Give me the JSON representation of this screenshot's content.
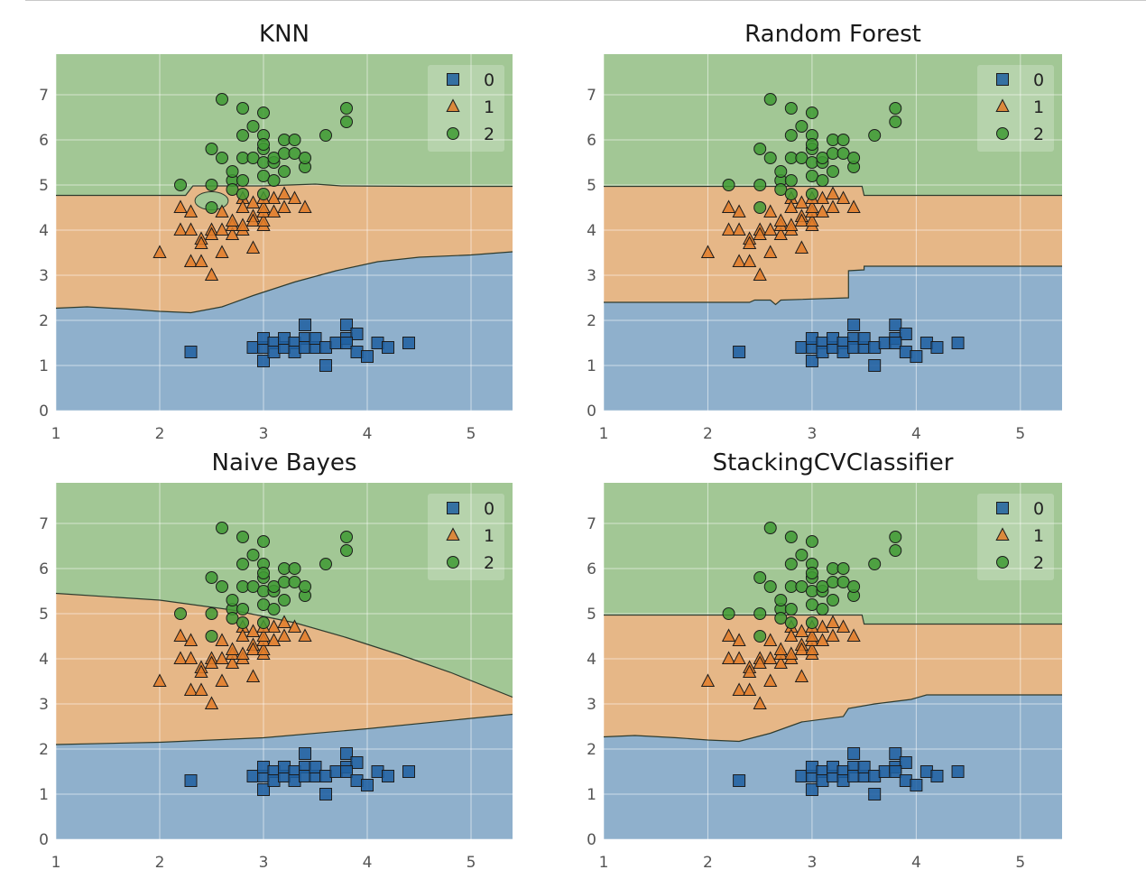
{
  "colors": {
    "class0": "#1f5fa0",
    "class1": "#e07b28",
    "class2": "#3f9a34",
    "region0": "#8fb0cc",
    "region1": "#e6b787",
    "region2": "#a2c795",
    "grid": "#ffffff",
    "boundary": "#2e3b2e",
    "tick_text": "#555555"
  },
  "chart_data": [
    {
      "type": "scatter",
      "title": "KNN",
      "xlim": [
        1,
        5.4
      ],
      "ylim": [
        0,
        7.9
      ],
      "xticks": [
        "1",
        "2",
        "3",
        "4",
        "5"
      ],
      "yticks": [
        "0",
        "1",
        "2",
        "3",
        "4",
        "5",
        "6",
        "7"
      ],
      "legend": {
        "position": "top-right",
        "entries": [
          "0",
          "1",
          "2"
        ],
        "markers": [
          "square",
          "triangle",
          "circle"
        ]
      },
      "boundaries": {
        "lower": [
          [
            1,
            2.27
          ],
          [
            1.3,
            2.3
          ],
          [
            1.7,
            2.25
          ],
          [
            2,
            2.2
          ],
          [
            2.3,
            2.17
          ],
          [
            2.6,
            2.3
          ],
          [
            2.9,
            2.55
          ],
          [
            3.3,
            2.85
          ],
          [
            3.7,
            3.1
          ],
          [
            4.1,
            3.3
          ],
          [
            4.5,
            3.4
          ],
          [
            5,
            3.45
          ],
          [
            5.4,
            3.52
          ]
        ],
        "upper": [
          [
            1,
            4.77
          ],
          [
            2.25,
            4.77
          ],
          [
            2.32,
            4.98
          ],
          [
            2.7,
            4.98
          ],
          [
            3,
            4.98
          ],
          [
            3.5,
            5.02
          ],
          [
            3.75,
            4.98
          ],
          [
            4.5,
            4.97
          ],
          [
            5.4,
            4.97
          ]
        ]
      },
      "islands": [
        {
          "class": 2,
          "center": [
            2.5,
            4.65
          ],
          "rx": 0.16,
          "ry": 0.2
        }
      ]
    },
    {
      "type": "scatter",
      "title": "Random Forest",
      "xlim": [
        1,
        5.4
      ],
      "ylim": [
        0,
        7.9
      ],
      "xticks": [
        "1",
        "2",
        "3",
        "4",
        "5"
      ],
      "yticks": [
        "0",
        "1",
        "2",
        "3",
        "4",
        "5",
        "6",
        "7"
      ],
      "legend": {
        "position": "top-right",
        "entries": [
          "0",
          "1",
          "2"
        ],
        "markers": [
          "square",
          "triangle",
          "circle"
        ]
      },
      "boundaries": {
        "lower": [
          [
            1,
            2.4
          ],
          [
            2.4,
            2.4
          ],
          [
            2.45,
            2.45
          ],
          [
            2.6,
            2.45
          ],
          [
            2.65,
            2.35
          ],
          [
            2.7,
            2.45
          ],
          [
            3.35,
            2.5
          ],
          [
            3.35,
            3.1
          ],
          [
            3.5,
            3.12
          ],
          [
            3.5,
            3.2
          ],
          [
            5.4,
            3.2
          ]
        ],
        "upper": [
          [
            1,
            4.97
          ],
          [
            3.48,
            4.97
          ],
          [
            3.5,
            4.77
          ],
          [
            5.4,
            4.77
          ]
        ]
      },
      "islands": []
    },
    {
      "type": "scatter",
      "title": "Naive Bayes",
      "xlim": [
        1,
        5.4
      ],
      "ylim": [
        0,
        7.9
      ],
      "xticks": [
        "1",
        "2",
        "3",
        "4",
        "5"
      ],
      "yticks": [
        "0",
        "1",
        "2",
        "3",
        "4",
        "5",
        "6",
        "7"
      ],
      "legend": {
        "position": "top-right",
        "entries": [
          "0",
          "1",
          "2"
        ],
        "markers": [
          "square",
          "triangle",
          "circle"
        ]
      },
      "boundaries": {
        "lower": [
          [
            1,
            2.1
          ],
          [
            2,
            2.15
          ],
          [
            3,
            2.25
          ],
          [
            4,
            2.45
          ],
          [
            5,
            2.68
          ],
          [
            5.4,
            2.77
          ]
        ],
        "upper": [
          [
            1,
            5.45
          ],
          [
            2,
            5.3
          ],
          [
            2.7,
            5.08
          ],
          [
            3.3,
            4.8
          ],
          [
            3.8,
            4.47
          ],
          [
            4.3,
            4.1
          ],
          [
            4.8,
            3.7
          ],
          [
            5.4,
            3.15
          ]
        ]
      },
      "islands": []
    },
    {
      "type": "scatter",
      "title": "StackingCVClassifier",
      "xlim": [
        1,
        5.4
      ],
      "ylim": [
        0,
        7.9
      ],
      "xticks": [
        "1",
        "2",
        "3",
        "4",
        "5"
      ],
      "yticks": [
        "0",
        "1",
        "2",
        "3",
        "4",
        "5",
        "6",
        "7"
      ],
      "legend": {
        "position": "top-right",
        "entries": [
          "0",
          "1",
          "2"
        ],
        "markers": [
          "square",
          "triangle",
          "circle"
        ]
      },
      "boundaries": {
        "lower": [
          [
            1,
            2.27
          ],
          [
            1.3,
            2.3
          ],
          [
            1.7,
            2.25
          ],
          [
            2,
            2.2
          ],
          [
            2.3,
            2.17
          ],
          [
            2.6,
            2.35
          ],
          [
            2.9,
            2.6
          ],
          [
            3.3,
            2.72
          ],
          [
            3.35,
            2.9
          ],
          [
            3.6,
            3.0
          ],
          [
            3.95,
            3.1
          ],
          [
            4.1,
            3.2
          ],
          [
            5.4,
            3.2
          ]
        ],
        "upper": [
          [
            1,
            4.97
          ],
          [
            3.48,
            4.97
          ],
          [
            3.5,
            4.77
          ],
          [
            5.4,
            4.77
          ]
        ]
      },
      "islands": []
    }
  ],
  "points": {
    "class0": [
      [
        2.3,
        1.3
      ],
      [
        2.9,
        1.4
      ],
      [
        3.0,
        1.4
      ],
      [
        3.0,
        1.1
      ],
      [
        3.0,
        1.6
      ],
      [
        3.1,
        1.5
      ],
      [
        3.1,
        1.3
      ],
      [
        3.2,
        1.4
      ],
      [
        3.2,
        1.6
      ],
      [
        3.3,
        1.5
      ],
      [
        3.3,
        1.3
      ],
      [
        3.4,
        1.6
      ],
      [
        3.4,
        1.9
      ],
      [
        3.4,
        1.4
      ],
      [
        3.5,
        1.4
      ],
      [
        3.5,
        1.6
      ],
      [
        3.6,
        1.4
      ],
      [
        3.6,
        1.0
      ],
      [
        3.7,
        1.5
      ],
      [
        3.8,
        1.6
      ],
      [
        3.8,
        1.9
      ],
      [
        3.9,
        1.7
      ],
      [
        3.8,
        1.5
      ],
      [
        3.9,
        1.3
      ],
      [
        4.0,
        1.2
      ],
      [
        4.1,
        1.5
      ],
      [
        4.2,
        1.4
      ],
      [
        4.4,
        1.5
      ]
    ],
    "class1": [
      [
        2.0,
        3.5
      ],
      [
        2.2,
        4.0
      ],
      [
        2.2,
        4.5
      ],
      [
        2.3,
        3.3
      ],
      [
        2.3,
        4.0
      ],
      [
        2.3,
        4.4
      ],
      [
        2.4,
        3.3
      ],
      [
        2.4,
        3.8
      ],
      [
        2.4,
        3.7
      ],
      [
        2.5,
        3.0
      ],
      [
        2.5,
        4.0
      ],
      [
        2.5,
        3.9
      ],
      [
        2.6,
        3.5
      ],
      [
        2.6,
        4.0
      ],
      [
        2.6,
        4.4
      ],
      [
        2.7,
        3.9
      ],
      [
        2.7,
        4.1
      ],
      [
        2.7,
        4.2
      ],
      [
        2.8,
        4.0
      ],
      [
        2.8,
        4.1
      ],
      [
        2.8,
        4.7
      ],
      [
        2.8,
        4.5
      ],
      [
        2.9,
        3.6
      ],
      [
        2.9,
        4.3
      ],
      [
        2.9,
        4.6
      ],
      [
        2.9,
        4.2
      ],
      [
        3.0,
        4.1
      ],
      [
        3.0,
        4.2
      ],
      [
        3.0,
        4.4
      ],
      [
        3.0,
        4.5
      ],
      [
        3.1,
        4.4
      ],
      [
        3.1,
        4.7
      ],
      [
        3.2,
        4.5
      ],
      [
        3.2,
        4.8
      ],
      [
        3.3,
        4.7
      ],
      [
        3.4,
        4.5
      ],
      [
        3.0,
        4.7
      ]
    ],
    "class2": [
      [
        2.2,
        5.0
      ],
      [
        2.5,
        5.8
      ],
      [
        2.5,
        4.5
      ],
      [
        2.5,
        5.0
      ],
      [
        2.6,
        5.6
      ],
      [
        2.6,
        6.9
      ],
      [
        2.7,
        5.1
      ],
      [
        2.7,
        5.3
      ],
      [
        2.7,
        4.9
      ],
      [
        2.8,
        5.6
      ],
      [
        2.8,
        5.1
      ],
      [
        2.8,
        6.1
      ],
      [
        2.8,
        4.8
      ],
      [
        2.8,
        6.7
      ],
      [
        2.9,
        5.6
      ],
      [
        2.9,
        6.3
      ],
      [
        3.0,
        5.8
      ],
      [
        3.0,
        5.5
      ],
      [
        3.0,
        5.2
      ],
      [
        3.0,
        6.1
      ],
      [
        3.0,
        4.8
      ],
      [
        3.0,
        6.6
      ],
      [
        3.0,
        5.9
      ],
      [
        3.1,
        5.5
      ],
      [
        3.1,
        5.1
      ],
      [
        3.1,
        5.6
      ],
      [
        3.2,
        5.3
      ],
      [
        3.2,
        5.7
      ],
      [
        3.2,
        6.0
      ],
      [
        3.3,
        5.7
      ],
      [
        3.3,
        6.0
      ],
      [
        3.4,
        5.4
      ],
      [
        3.4,
        5.6
      ],
      [
        3.6,
        6.1
      ],
      [
        3.8,
        6.4
      ],
      [
        3.8,
        6.7
      ]
    ]
  }
}
